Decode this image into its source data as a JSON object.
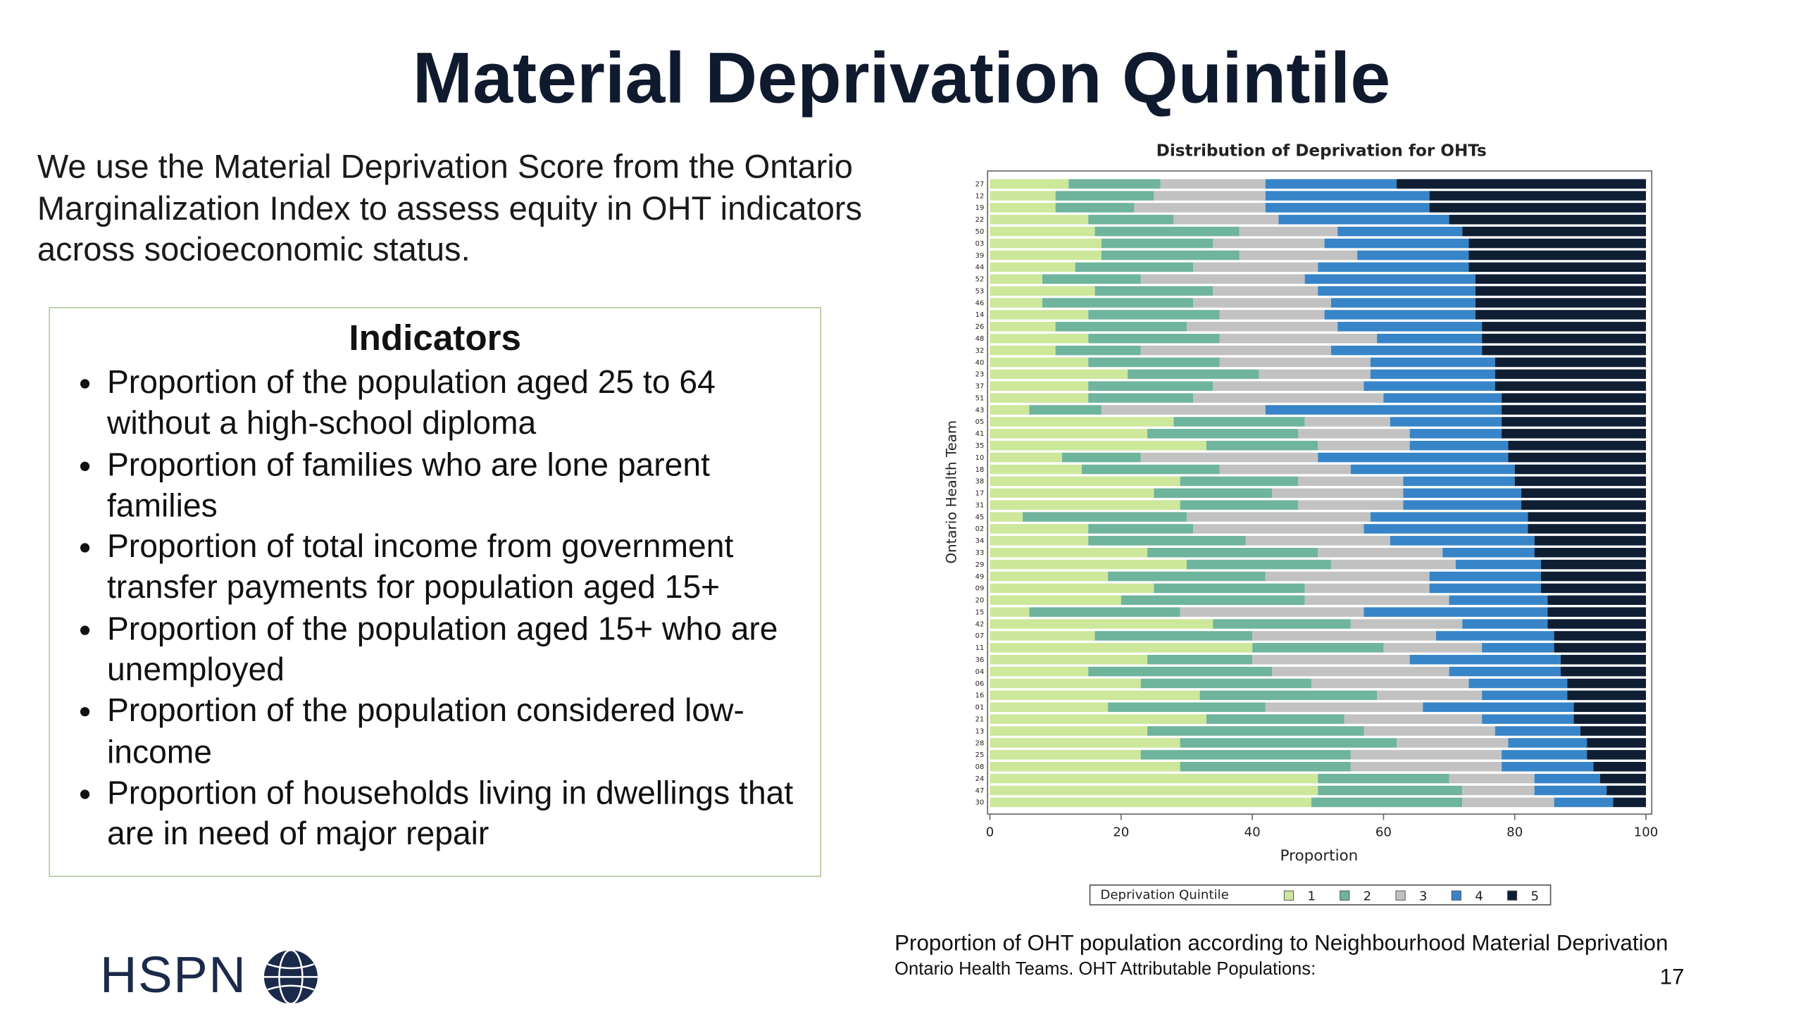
{
  "title": "Material Deprivation Quintile",
  "intro": "We use the Material Deprivation Score from the Ontario Marginalization Index to assess equity in OHT indicators across socioeconomic status.",
  "indicators": {
    "heading": "Indicators",
    "items": [
      "Proportion of the population aged 25 to 64 without a high-school diploma",
      "Proportion of families who are lone parent families",
      "Proportion of total income from government transfer payments for population aged 15+",
      "Proportion of the population aged 15+ who are unemployed",
      "Proportion of the population considered low-income",
      "Proportion of households living in dwellings that are in need of major repair"
    ]
  },
  "chart_data": {
    "type": "stacked_barh",
    "title": "Distribution of Deprivation for OHTs",
    "x_label": "Proportion",
    "y_label": "Ontario Health Team",
    "legend_title": "Deprivation Quintile",
    "legend": "bottom",
    "categories": [
      "27",
      "12",
      "19",
      "22",
      "50",
      "03",
      "39",
      "44",
      "52",
      "53",
      "46",
      "14",
      "26",
      "48",
      "32",
      "40",
      "23",
      "37",
      "51",
      "43",
      "05",
      "41",
      "35",
      "10",
      "18",
      "38",
      "17",
      "31",
      "45",
      "02",
      "34",
      "33",
      "29",
      "49",
      "09",
      "20",
      "15",
      "42",
      "07",
      "11",
      "36",
      "04",
      "06",
      "16",
      "01",
      "21",
      "13",
      "28",
      "25",
      "08",
      "24",
      "47",
      "30"
    ],
    "xlim": [
      0,
      100
    ],
    "xticks": [
      0,
      20,
      40,
      60,
      80,
      100
    ],
    "series": [
      {
        "name": "1",
        "color": "#cde79b",
        "values": [
          12,
          10,
          10,
          15,
          16,
          17,
          17,
          13,
          8,
          16,
          8,
          15,
          10,
          15,
          10,
          15,
          21,
          15,
          15,
          6,
          28,
          24,
          33,
          11,
          14,
          29,
          25,
          29,
          5,
          15,
          15,
          24,
          30,
          18,
          25,
          20,
          6,
          34,
          16,
          40,
          24,
          15,
          23,
          32,
          18,
          33,
          24,
          29,
          23,
          29,
          50,
          50,
          49
        ]
      },
      {
        "name": "2",
        "color": "#6fb49c",
        "values": [
          14,
          15,
          12,
          13,
          22,
          17,
          21,
          18,
          15,
          18,
          23,
          20,
          20,
          20,
          13,
          20,
          20,
          19,
          16,
          11,
          20,
          23,
          17,
          12,
          21,
          18,
          18,
          18,
          25,
          16,
          24,
          26,
          22,
          24,
          23,
          28,
          23,
          21,
          24,
          20,
          16,
          28,
          26,
          27,
          24,
          21,
          33,
          33,
          32,
          26,
          20,
          22,
          23
        ]
      },
      {
        "name": "3",
        "color": "#c2c2c2",
        "values": [
          16,
          17,
          20,
          16,
          15,
          17,
          18,
          19,
          25,
          16,
          21,
          16,
          23,
          24,
          29,
          23,
          17,
          23,
          29,
          25,
          13,
          17,
          14,
          27,
          20,
          16,
          20,
          16,
          28,
          26,
          22,
          19,
          19,
          25,
          19,
          22,
          28,
          17,
          28,
          15,
          24,
          27,
          24,
          16,
          24,
          21,
          20,
          17,
          23,
          23,
          13,
          11,
          14
        ]
      },
      {
        "name": "4",
        "color": "#3785c8",
        "values": [
          20,
          25,
          25,
          26,
          19,
          22,
          17,
          23,
          26,
          24,
          22,
          23,
          22,
          16,
          23,
          19,
          19,
          20,
          18,
          36,
          17,
          14,
          15,
          29,
          25,
          17,
          18,
          18,
          24,
          25,
          22,
          14,
          13,
          17,
          17,
          15,
          28,
          13,
          18,
          11,
          23,
          17,
          15,
          13,
          23,
          14,
          13,
          12,
          13,
          14,
          10,
          11,
          9
        ]
      },
      {
        "name": "5",
        "color": "#0f1e33",
        "values": [
          38,
          33,
          33,
          30,
          28,
          27,
          27,
          27,
          26,
          26,
          26,
          26,
          25,
          25,
          25,
          23,
          23,
          23,
          22,
          22,
          22,
          22,
          21,
          21,
          20,
          20,
          19,
          19,
          18,
          18,
          17,
          17,
          16,
          16,
          16,
          15,
          15,
          15,
          14,
          14,
          13,
          13,
          12,
          12,
          11,
          11,
          10,
          9,
          9,
          8,
          7,
          6,
          5
        ]
      }
    ]
  },
  "caption": "Proportion of OHT population according to Neighbourhood Material Deprivation",
  "source": "Ontario Health Teams. OHT Attributable Populations:",
  "page_number": "17",
  "logo": "HSPN"
}
